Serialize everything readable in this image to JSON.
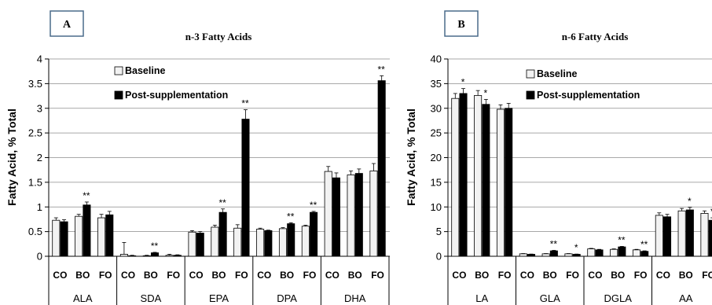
{
  "chart_data": [
    {
      "type": "bar",
      "panel_label": "A",
      "title": "n-3 Fatty Acids",
      "ylabel": "Fatty Acid, % Total",
      "ylim": [
        0,
        4
      ],
      "yticks": [
        "0",
        "0.5",
        "1",
        "1.5",
        "2",
        "2.5",
        "3",
        "3.5",
        "4"
      ],
      "grid": true,
      "legend_position": "top-left",
      "groups": [
        "ALA",
        "SDA",
        "EPA",
        "DPA",
        "DHA"
      ],
      "subgroups": [
        "CO",
        "BO",
        "FO"
      ],
      "series": [
        {
          "name": "Baseline",
          "color": "#f2f2f2",
          "values": [
            0.73,
            0.81,
            0.78,
            0.04,
            0.01,
            0.02,
            0.49,
            0.59,
            0.57,
            0.55,
            0.56,
            0.61,
            1.72,
            1.65,
            1.73
          ],
          "errors": [
            0.05,
            0.04,
            0.07,
            0.24,
            0.01,
            0.02,
            0.03,
            0.04,
            0.07,
            0.02,
            0.02,
            0.02,
            0.1,
            0.08,
            0.15
          ]
        },
        {
          "name": "Post-supplementation",
          "color": "#000000",
          "values": [
            0.7,
            1.04,
            0.84,
            0.01,
            0.07,
            0.02,
            0.47,
            0.89,
            2.78,
            0.52,
            0.66,
            0.89,
            1.59,
            1.68,
            3.56
          ],
          "errors": [
            0.04,
            0.06,
            0.07,
            0.01,
            0.01,
            0.01,
            0.03,
            0.07,
            0.19,
            0.01,
            0.02,
            0.02,
            0.1,
            0.09,
            0.1
          ]
        }
      ],
      "significance": [
        "",
        "**",
        "",
        "",
        "**",
        "",
        "",
        "**",
        "**",
        "",
        "**",
        "**",
        "",
        "",
        "**"
      ]
    },
    {
      "type": "bar",
      "panel_label": "B",
      "title": "n-6 Fatty Acids",
      "ylabel": "Fatty Acid, % Total",
      "ylim": [
        0,
        40
      ],
      "yticks": [
        "0",
        "5",
        "10",
        "15",
        "20",
        "25",
        "30",
        "35",
        "40"
      ],
      "grid": true,
      "legend_position": "top-center",
      "groups": [
        "LA",
        "GLA",
        "DGLA",
        "AA"
      ],
      "subgroups": [
        "CO",
        "BO",
        "FO"
      ],
      "series": [
        {
          "name": "Baseline",
          "color": "#f2f2f2",
          "values": [
            32.0,
            32.6,
            29.8,
            0.5,
            0.5,
            0.5,
            1.5,
            1.4,
            1.3,
            8.3,
            9.2,
            8.7
          ],
          "errors": [
            1.0,
            1.0,
            0.9,
            0.05,
            0.05,
            0.05,
            0.1,
            0.1,
            0.1,
            0.5,
            0.5,
            0.5
          ]
        },
        {
          "name": "Post-supplementation",
          "color": "#000000",
          "values": [
            33.0,
            30.8,
            30.0,
            0.4,
            1.1,
            0.4,
            1.3,
            1.9,
            1.0,
            8.0,
            9.4,
            7.3
          ],
          "errors": [
            1.0,
            1.0,
            1.0,
            0.05,
            0.1,
            0.05,
            0.1,
            0.1,
            0.1,
            0.5,
            0.5,
            0.5
          ]
        }
      ],
      "significance": [
        "*",
        "*",
        "",
        "",
        "**",
        "*",
        "",
        "**",
        "**",
        "",
        "*",
        "*"
      ]
    }
  ]
}
